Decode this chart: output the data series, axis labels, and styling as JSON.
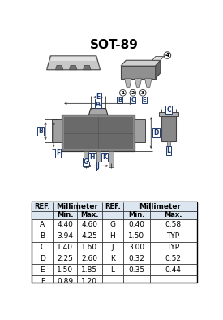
{
  "title": "SOT-89",
  "table_data": [
    [
      "A",
      "4.40",
      "4.60",
      "G",
      "0.40",
      "0.58"
    ],
    [
      "B",
      "3.94",
      "4.25",
      "H",
      "1.50",
      "TYP"
    ],
    [
      "C",
      "1.40",
      "1.60",
      "J",
      "3.00",
      "TYP"
    ],
    [
      "D",
      "2.25",
      "2.60",
      "K",
      "0.32",
      "0.52"
    ],
    [
      "E",
      "1.50",
      "1.85",
      "L",
      "0.35",
      "0.44"
    ],
    [
      "F",
      "0.89",
      "1.20",
      "",
      "",
      ""
    ]
  ],
  "bg_color": "#ffffff",
  "table_header_bg": "#dce6f1",
  "label_color": "#1f3a6e",
  "title_fontsize": 11,
  "body_fill": "#888888",
  "body_fill_light": "#b0b0b0",
  "body_fill_dark": "#666666"
}
